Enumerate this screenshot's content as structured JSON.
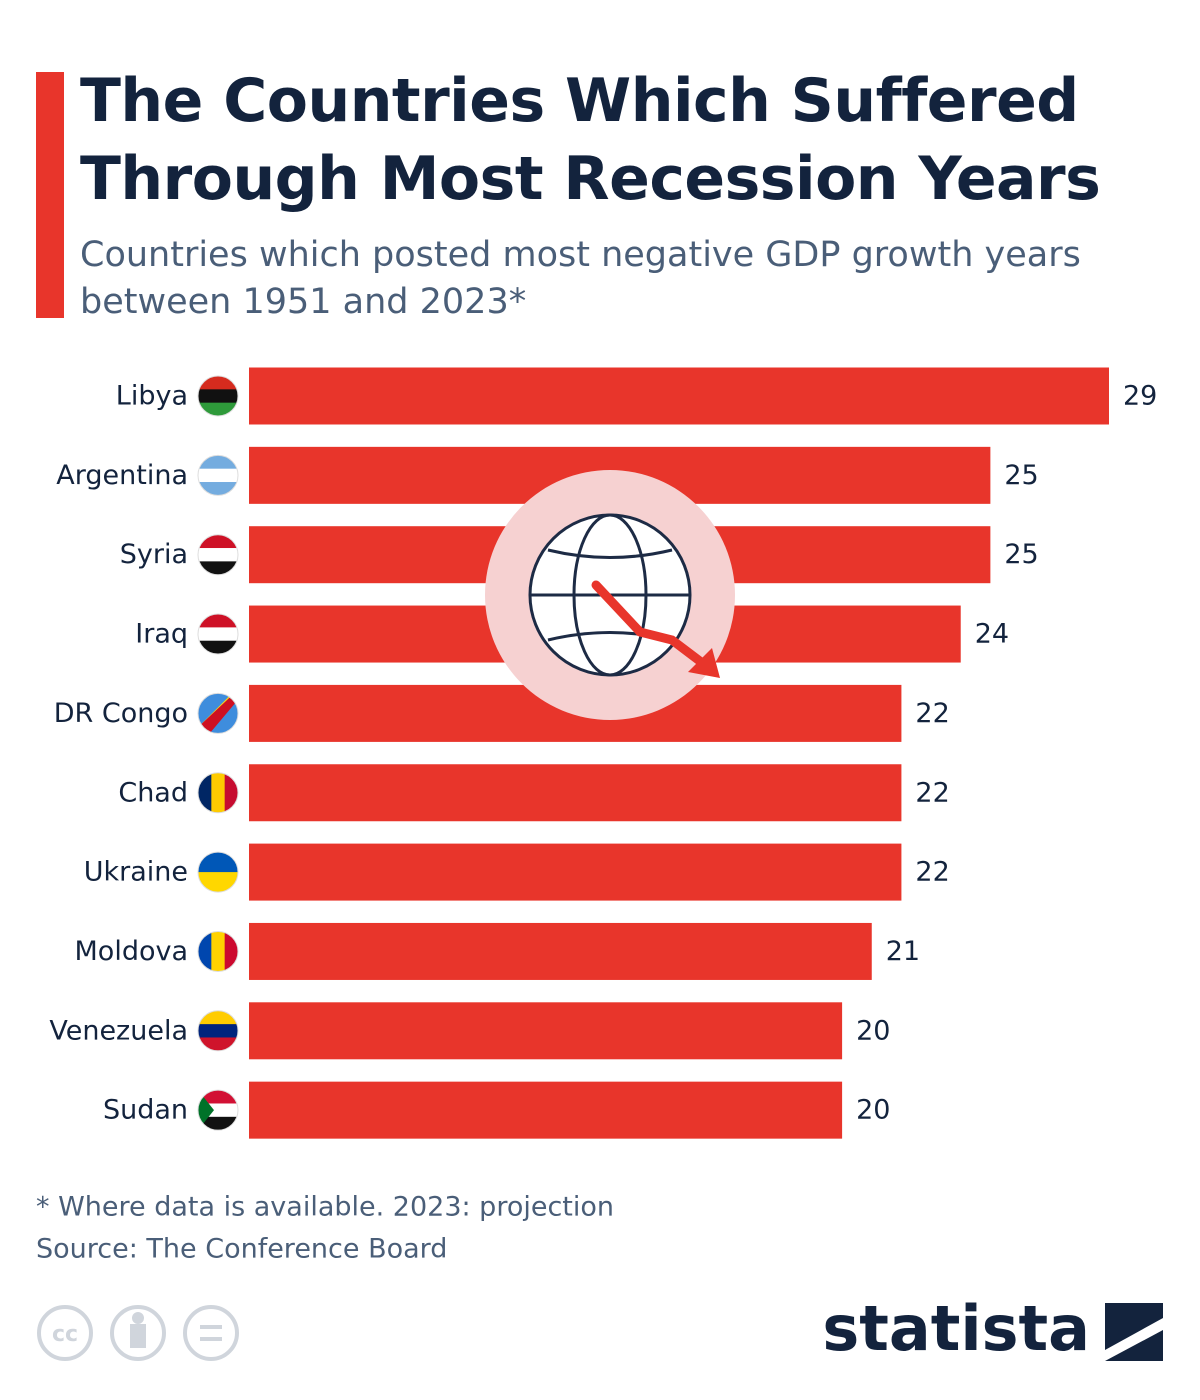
{
  "chart_data": {
    "type": "bar",
    "title": "The Countries Which Suffered Through Most Recession Years",
    "subtitle": "Countries which posted most negative GDP growth years between 1951 and 2023*",
    "categories": [
      "Libya",
      "Argentina",
      "Syria",
      "Iraq",
      "DR Congo",
      "Chad",
      "Ukraine",
      "Moldova",
      "Venezuela",
      "Sudan"
    ],
    "values": [
      29,
      25,
      25,
      24,
      22,
      22,
      22,
      21,
      20,
      20
    ],
    "color": "#e8352b",
    "footnote": "* Where data is available. 2023: projection",
    "source": "Source: The Conference Board",
    "license": "cc",
    "brand": "statista"
  }
}
